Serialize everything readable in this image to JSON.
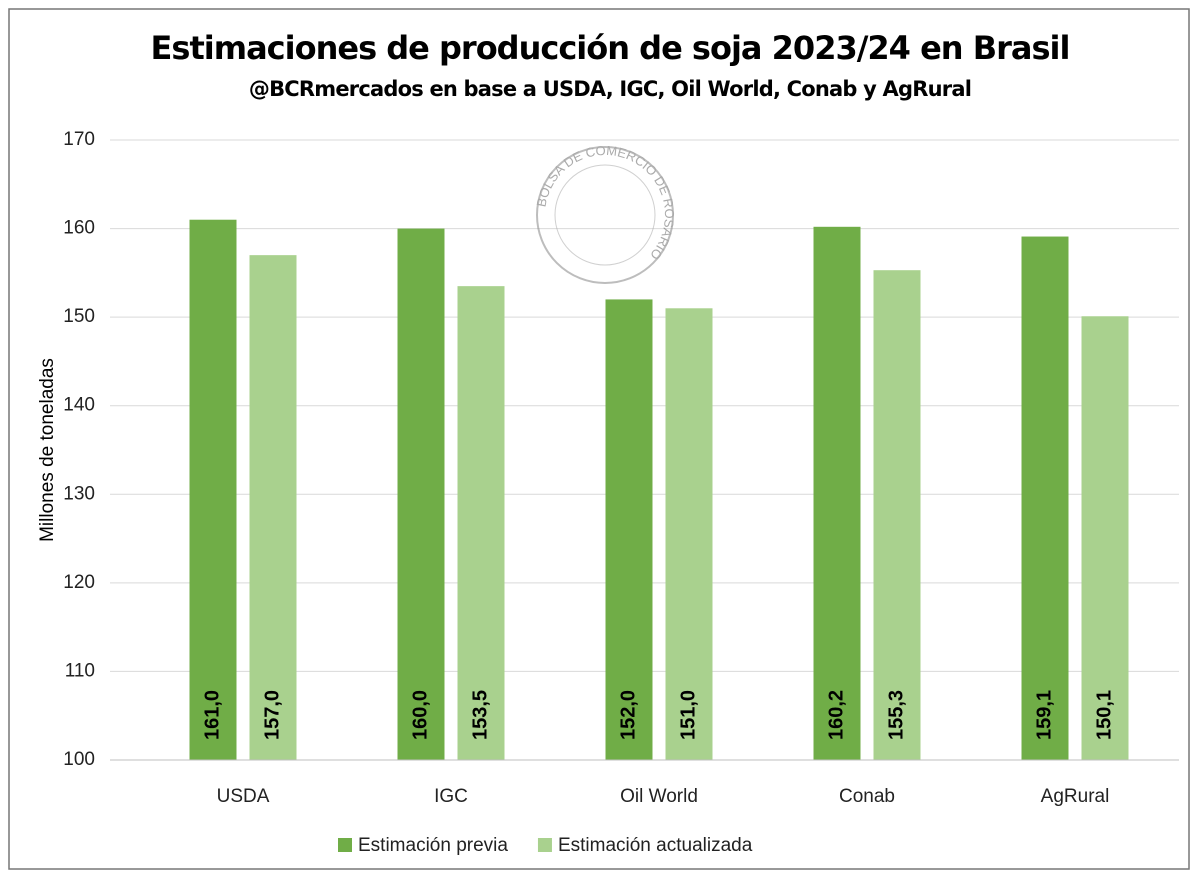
{
  "chart_data": {
    "type": "bar",
    "title": "Estimaciones de producción de soja 2023/24 en Brasil",
    "subtitle": "@BCRmercados en base a USDA, IGC, Oil World,  Conab y AgRural",
    "y_label": "Millones de toneladas",
    "watermark": "BOLSA DE COMERCIO DE ROSARIO",
    "categories": [
      "USDA",
      "IGC",
      "Oil World",
      "Conab",
      "AgRural"
    ],
    "series": [
      {
        "name": "Estimación previa",
        "color": "#70ad47",
        "values": [
          161.0,
          160.0,
          152.0,
          160.2,
          159.1
        ],
        "value_labels": [
          "161,0",
          "160,0",
          "152,0",
          "160,2",
          "159,1"
        ]
      },
      {
        "name": "Estimación actualizada",
        "color": "#a9d18e",
        "values": [
          157.0,
          153.5,
          151.0,
          155.3,
          150.1
        ],
        "value_labels": [
          "157,0",
          "153,5",
          "151,0",
          "155,3",
          "150,1"
        ]
      }
    ],
    "ylim": [
      100,
      170
    ],
    "yticks": [
      100,
      110,
      120,
      130,
      140,
      150,
      160,
      170
    ],
    "grid": true,
    "legend": "bottom"
  }
}
